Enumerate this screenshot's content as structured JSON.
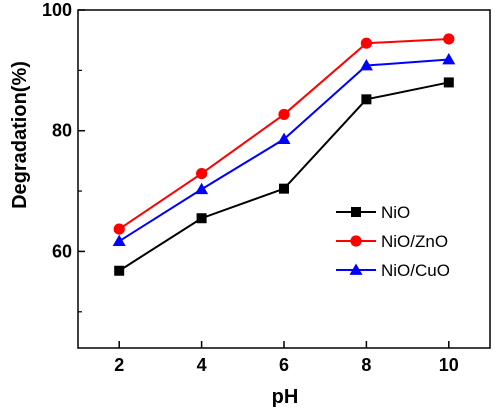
{
  "chart_data": {
    "type": "line",
    "title": "",
    "xlabel": "pH",
    "ylabel": "Degradation(%)",
    "x": [
      2,
      4,
      6,
      8,
      10
    ],
    "xlim": [
      1,
      11
    ],
    "ylim": [
      44,
      100
    ],
    "xticks": [
      2,
      4,
      6,
      8,
      10
    ],
    "yticks": [
      60,
      80,
      100
    ],
    "grid": false,
    "legend_position": "center-right",
    "series": [
      {
        "name": "NiO",
        "values": [
          56.8,
          65.5,
          70.4,
          85.2,
          88.0
        ],
        "color": "#000000",
        "marker": "square"
      },
      {
        "name": "NiO/ZnO",
        "values": [
          63.7,
          72.9,
          82.7,
          94.5,
          95.2
        ],
        "color": "#ff0000",
        "marker": "circle"
      },
      {
        "name": "NiO/CuO",
        "values": [
          61.7,
          70.3,
          78.6,
          90.8,
          91.8
        ],
        "color": "#0000ff",
        "marker": "triangle"
      }
    ]
  }
}
